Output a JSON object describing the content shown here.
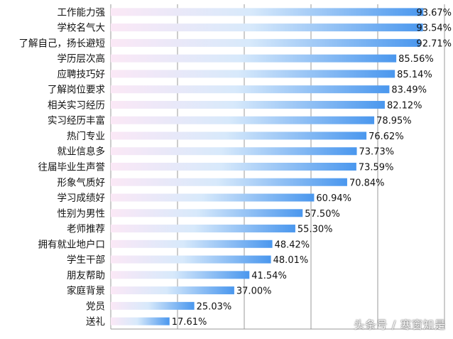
{
  "chart_data": {
    "type": "bar",
    "orientation": "horizontal",
    "title": "",
    "xlabel": "",
    "ylabel": "",
    "xlim": [
      0,
      100
    ],
    "grid": true,
    "value_suffix": "%",
    "categories": [
      "工作能力强",
      "学校名气大",
      "了解自己，扬长避短",
      "学历层次高",
      "应聘技巧好",
      "了解岗位要求",
      "相关实习经历",
      "实习经历丰富",
      "热门专业",
      "就业信息多",
      "往届毕业生声誉",
      "形象气质好",
      "学习成绩好",
      "性别为男性",
      "老师推荐",
      "拥有就业地户口",
      "学生干部",
      "朋友帮助",
      "家庭背景",
      "党员",
      "送礼"
    ],
    "values": [
      93.67,
      93.54,
      92.71,
      85.56,
      85.14,
      83.49,
      82.12,
      78.95,
      76.62,
      73.73,
      73.59,
      70.84,
      60.94,
      57.5,
      55.3,
      48.42,
      48.01,
      41.54,
      37.0,
      25.03,
      17.61
    ],
    "value_labels": [
      "93.67%",
      "93.54%",
      "92.71%",
      "85.56%",
      "85.14%",
      "83.49%",
      "82.12%",
      "78.95%",
      "76.62%",
      "73.73%",
      "73.59%",
      "70.84%",
      "60.94%",
      "57.50%",
      "55.30%",
      "48.42%",
      "48.01%",
      "41.54%",
      "37.00%",
      "25.03%",
      "17.61%"
    ],
    "colors": {
      "bar_start": "#fbe8f6",
      "bar_mid": "#d7e9fb",
      "bar_end": "#4a97ee",
      "grid": "#9a9a9a"
    }
  },
  "watermark": "头条号 / 寒窗知是"
}
